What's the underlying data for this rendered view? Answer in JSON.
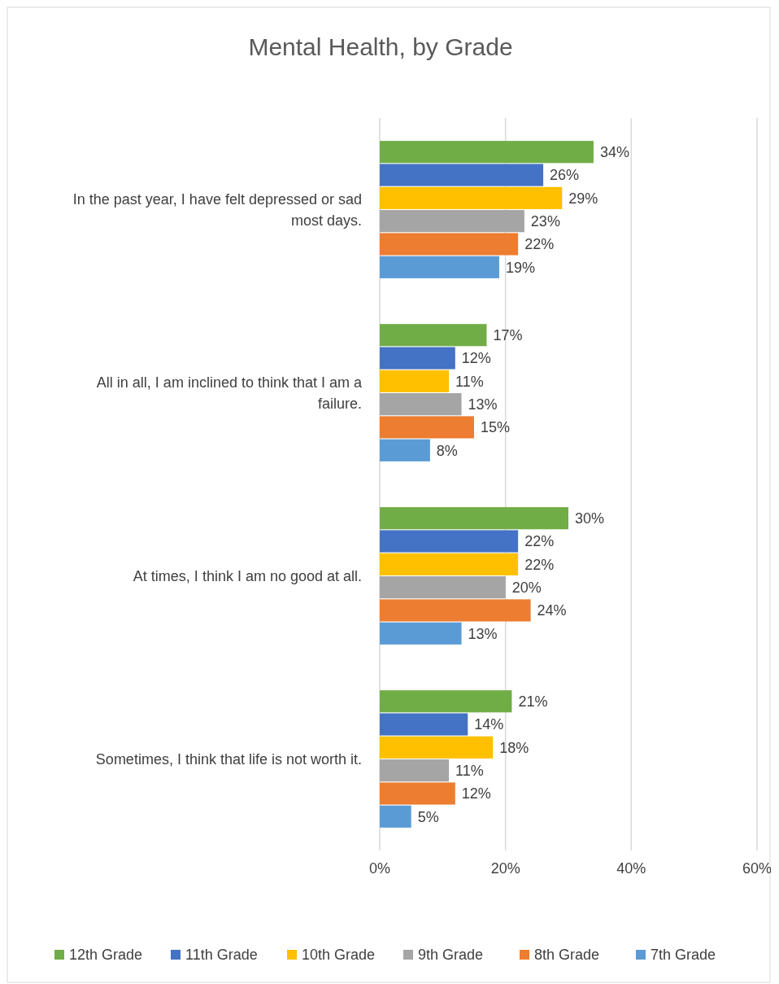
{
  "chart_data": {
    "type": "bar",
    "orientation": "horizontal",
    "title": "Mental Health, by Grade",
    "categories": [
      "In the past year, I have felt depressed or sad most days.",
      "All in all, I am inclined to think that I am a failure.",
      "At times, I think I am no good at all.",
      "Sometimes, I think that life is not worth it."
    ],
    "series": [
      {
        "name": "12th Grade",
        "color": "#70ad47",
        "values": [
          34,
          17,
          30,
          21
        ],
        "value_labels": [
          "34%",
          "17%",
          "30%",
          "21%"
        ]
      },
      {
        "name": "11th Grade",
        "color": "#4472c4",
        "values": [
          26,
          12,
          22,
          14
        ],
        "value_labels": [
          "26%",
          "12%",
          "22%",
          "14%"
        ]
      },
      {
        "name": "10th Grade",
        "color": "#ffc000",
        "values": [
          29,
          11,
          22,
          18
        ],
        "value_labels": [
          "29%",
          "11%",
          "22%",
          "18%"
        ]
      },
      {
        "name": "9th Grade",
        "color": "#a5a5a5",
        "values": [
          23,
          13,
          20,
          11
        ],
        "value_labels": [
          "23%",
          "13%",
          "20%",
          "11%"
        ]
      },
      {
        "name": "8th Grade",
        "color": "#ed7d31",
        "values": [
          22,
          15,
          24,
          12
        ],
        "value_labels": [
          "22%",
          "15%",
          "24%",
          "12%"
        ]
      },
      {
        "name": "7th Grade",
        "color": "#5b9bd5",
        "values": [
          19,
          8,
          13,
          5
        ],
        "value_labels": [
          "19%",
          "8%",
          "13%",
          "5%"
        ]
      }
    ],
    "xlim": [
      0,
      60
    ],
    "xticks": [
      {
        "value": 0,
        "label": "0%"
      },
      {
        "value": 20,
        "label": "20%"
      },
      {
        "value": 40,
        "label": "40%"
      },
      {
        "value": 60,
        "label": "60%"
      }
    ],
    "grid": "x",
    "legend": "bottom"
  }
}
